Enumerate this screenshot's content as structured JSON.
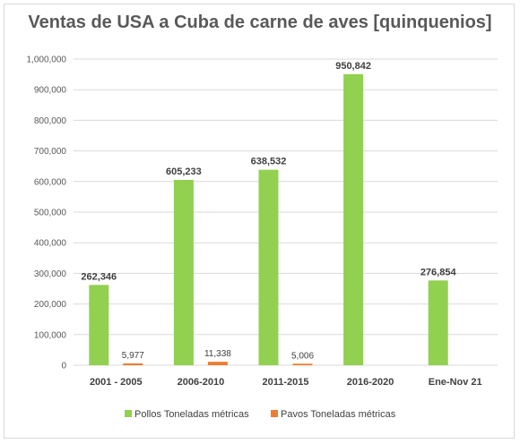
{
  "chart_data": {
    "type": "bar",
    "title": "Ventas de USA a Cuba de carne de aves [quinquenios]",
    "xlabel": "",
    "ylabel": "",
    "ylim": [
      0,
      1000000
    ],
    "yticks": [
      0,
      100000,
      200000,
      300000,
      400000,
      500000,
      600000,
      700000,
      800000,
      900000,
      1000000
    ],
    "ytick_labels": [
      "0",
      "100,000",
      "200,000",
      "300,000",
      "400,000",
      "500,000",
      "600,000",
      "700,000",
      "800,000",
      "900,000",
      "1,000,000"
    ],
    "grid": true,
    "legend_position": "bottom",
    "categories": [
      "2001 - 2005",
      "2006-2010",
      "2011-2015",
      "2016-2020",
      "Ene-Nov 21"
    ],
    "series": [
      {
        "name": "Pollos Toneladas métricas",
        "color": "#92d050",
        "values": [
          262346,
          605233,
          638532,
          950842,
          276854
        ],
        "labels": [
          "262,346",
          "605,233",
          "638,532",
          "950,842",
          "276,854"
        ]
      },
      {
        "name": "Pavos Toneladas métricas",
        "color": "#ed7d31",
        "values": [
          5977,
          11338,
          5006,
          null,
          null
        ],
        "labels": [
          "5,977",
          "11,338",
          "5,006",
          "",
          ""
        ]
      }
    ]
  }
}
